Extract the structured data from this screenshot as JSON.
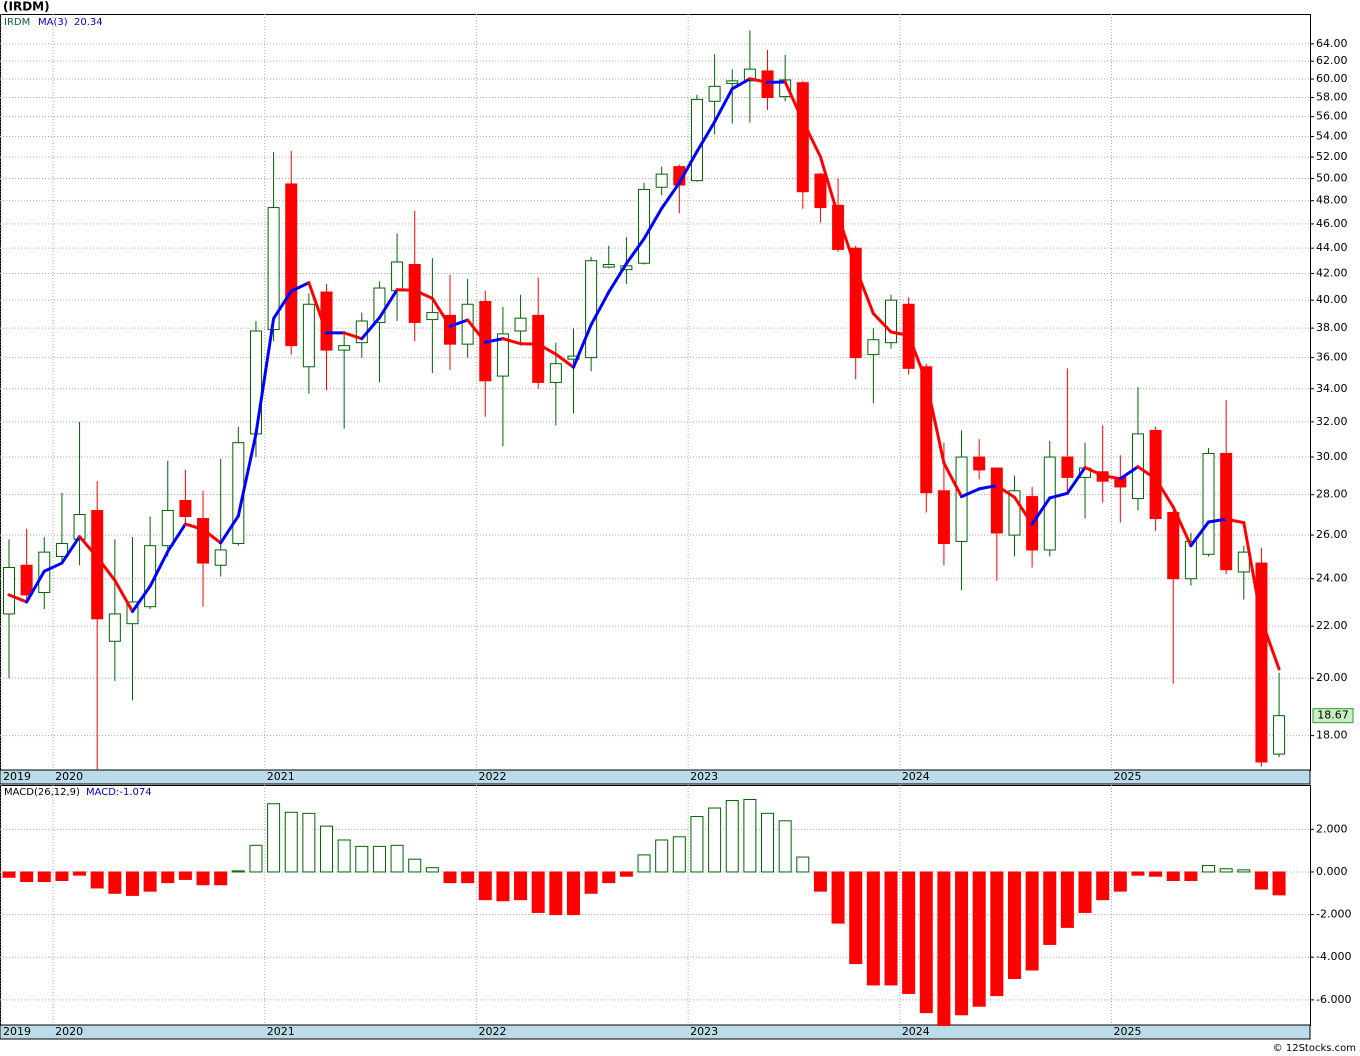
{
  "chart_data": [
    {
      "type": "candlestick",
      "title": "(IRDM)",
      "symbol": "IRDM",
      "log_scale": true,
      "grid": true,
      "categories": [
        "2019",
        null,
        null,
        "2020",
        null,
        null,
        null,
        null,
        null,
        null,
        null,
        null,
        null,
        null,
        null,
        "2021",
        null,
        null,
        null,
        null,
        null,
        null,
        null,
        null,
        null,
        null,
        null,
        "2022",
        null,
        null,
        null,
        null,
        null,
        null,
        null,
        null,
        null,
        null,
        null,
        "2023",
        null,
        null,
        null,
        null,
        null,
        null,
        null,
        null,
        null,
        null,
        null,
        "2024",
        null,
        null,
        null,
        null,
        null,
        null,
        null,
        null,
        null,
        null,
        null,
        "2025",
        null,
        null,
        null,
        null,
        null,
        null,
        null,
        null,
        null
      ],
      "open": [
        22.5,
        24.6,
        23.4,
        25.0,
        25.8,
        27.2,
        21.4,
        22.1,
        22.8,
        25.5,
        27.7,
        26.8,
        24.6,
        25.6,
        31.3,
        37.9,
        49.5,
        35.4,
        40.6,
        36.5,
        37.0,
        38.4,
        40.7,
        42.7,
        38.6,
        38.9,
        36.9,
        39.9,
        34.8,
        37.8,
        38.9,
        34.4,
        35.9,
        36.0,
        42.5,
        42.3,
        42.8,
        49.2,
        51.1,
        49.8,
        57.6,
        59.5,
        59.8,
        60.9,
        58.1,
        59.6,
        50.4,
        47.6,
        44.0,
        36.2,
        37.0,
        39.7,
        35.4,
        28.2,
        25.7,
        30.0,
        29.4,
        26.0,
        27.9,
        25.3,
        30.0,
        28.9,
        29.2,
        28.9,
        27.8,
        31.5,
        27.1,
        24.0,
        25.1,
        30.2,
        24.3,
        24.7,
        17.4
      ],
      "high": [
        25.8,
        26.3,
        25.9,
        28.1,
        32.0,
        28.7,
        25.8,
        25.9,
        26.9,
        29.8,
        29.3,
        28.2,
        29.9,
        31.7,
        38.5,
        52.5,
        52.6,
        40.5,
        41.2,
        37.8,
        39.1,
        41.4,
        45.2,
        47.1,
        43.2,
        41.9,
        41.6,
        40.7,
        39.5,
        40.4,
        41.7,
        37.0,
        38.0,
        43.3,
        44.2,
        44.9,
        49.6,
        51.1,
        51.3,
        58.3,
        62.8,
        61.1,
        65.6,
        63.3,
        62.7,
        59.8,
        50.5,
        50.0,
        44.2,
        38.0,
        40.4,
        40.2,
        35.6,
        30.8,
        31.5,
        31.0,
        29.4,
        29.0,
        28.4,
        30.9,
        35.3,
        30.8,
        31.8,
        30.1,
        34.1,
        31.7,
        27.2,
        26.1,
        30.5,
        33.3,
        25.5,
        25.4,
        20.2
      ],
      "low": [
        20.0,
        23.0,
        22.7,
        24.8,
        24.6,
        16.9,
        19.9,
        19.2,
        22.7,
        25.0,
        26.5,
        22.8,
        24.1,
        25.5,
        30.0,
        37.1,
        36.2,
        33.7,
        33.9,
        31.6,
        36.0,
        34.4,
        38.5,
        37.1,
        35.0,
        35.2,
        36.0,
        32.3,
        30.6,
        36.8,
        34.0,
        31.8,
        32.5,
        35.1,
        42.4,
        41.2,
        42.7,
        48.5,
        46.9,
        49.7,
        54.2,
        55.3,
        55.4,
        56.7,
        57.6,
        47.3,
        46.1,
        43.7,
        34.6,
        33.1,
        36.6,
        34.9,
        27.1,
        24.6,
        23.5,
        28.8,
        23.9,
        25.0,
        24.5,
        25.0,
        28.0,
        26.8,
        27.6,
        26.6,
        27.2,
        26.2,
        19.8,
        23.7,
        25.0,
        24.2,
        23.1,
        17.0,
        17.3
      ],
      "close": [
        24.5,
        23.3,
        25.2,
        25.6,
        27.0,
        22.3,
        22.5,
        23.0,
        25.5,
        27.2,
        26.9,
        24.7,
        25.3,
        30.8,
        37.8,
        47.4,
        36.8,
        39.7,
        36.5,
        36.8,
        38.5,
        40.9,
        42.9,
        38.4,
        39.1,
        36.9,
        39.7,
        34.5,
        37.6,
        38.7,
        34.4,
        35.6,
        36.1,
        43.0,
        42.7,
        42.6,
        49.0,
        50.4,
        49.4,
        57.8,
        59.2,
        59.8,
        61.1,
        58.0,
        59.9,
        48.8,
        47.4,
        43.9,
        36.0,
        37.2,
        40.0,
        35.3,
        28.1,
        25.6,
        30.0,
        29.3,
        26.1,
        28.2,
        25.3,
        30.0,
        28.9,
        29.4,
        28.7,
        28.4,
        31.3,
        26.8,
        24.0,
        25.7,
        30.2,
        24.4,
        25.2,
        17.15,
        18.67
      ],
      "up_color": "#006400",
      "down_color": "#ff0000",
      "last_price": 18.67,
      "last_price_color": "#c8f0c0",
      "ma": {
        "name": "MA(3)",
        "last": 20.34,
        "up_color": "#0000ff",
        "down_color": "#ff0000",
        "values": [
          23.3,
          23.0,
          24.33,
          24.7,
          25.93,
          24.97,
          23.93,
          22.6,
          23.67,
          25.23,
          26.53,
          26.27,
          25.63,
          26.93,
          31.3,
          38.67,
          40.67,
          41.3,
          37.67,
          37.67,
          37.27,
          38.73,
          40.77,
          40.73,
          40.13,
          38.13,
          38.57,
          37.03,
          37.27,
          36.93,
          36.9,
          36.23,
          35.37,
          38.23,
          40.6,
          42.77,
          44.77,
          47.33,
          49.6,
          52.53,
          55.47,
          58.93,
          60.03,
          59.63,
          59.67,
          55.57,
          52.03,
          46.7,
          42.43,
          39.03,
          37.73,
          37.5,
          34.47,
          29.67,
          27.9,
          28.3,
          28.47,
          27.87,
          26.53,
          27.83,
          28.07,
          29.43,
          29.0,
          28.83,
          29.47,
          28.83,
          27.37,
          25.5,
          26.63,
          26.77,
          26.6,
          22.25,
          20.34
        ]
      },
      "ylim": [
        16.9,
        67.6
      ],
      "yticks": [
        {
          "value": 18,
          "label": "18.00"
        },
        {
          "value": 20,
          "label": "20.00"
        },
        {
          "value": 22,
          "label": "22.00"
        },
        {
          "value": 24,
          "label": "24.00"
        },
        {
          "value": 26,
          "label": "26.00"
        },
        {
          "value": 28,
          "label": "28.00"
        },
        {
          "value": 30,
          "label": "30.00"
        },
        {
          "value": 32,
          "label": "32.00"
        },
        {
          "value": 34,
          "label": "34.00"
        },
        {
          "value": 36,
          "label": "36.00"
        },
        {
          "value": 38,
          "label": "38.00"
        },
        {
          "value": 40,
          "label": "40.00"
        },
        {
          "value": 42,
          "label": "42.00"
        },
        {
          "value": 44,
          "label": "44.00"
        },
        {
          "value": 46,
          "label": "46.00"
        },
        {
          "value": 48,
          "label": "48.00"
        },
        {
          "value": 50,
          "label": "50.00"
        },
        {
          "value": 52,
          "label": "52.00"
        },
        {
          "value": 54,
          "label": "54.00"
        },
        {
          "value": 56,
          "label": "56.00"
        },
        {
          "value": 58,
          "label": "58.00"
        },
        {
          "value": 60,
          "label": "60.00"
        },
        {
          "value": 62,
          "label": "62.00"
        },
        {
          "value": 64,
          "label": "64.00"
        }
      ]
    },
    {
      "type": "bar",
      "title": "MACD(26,12,9)",
      "legend": "MACD:-1.074",
      "grid": true,
      "categories": [
        "2019",
        null,
        null,
        "2020",
        null,
        null,
        null,
        null,
        null,
        null,
        null,
        null,
        null,
        null,
        null,
        "2021",
        null,
        null,
        null,
        null,
        null,
        null,
        null,
        null,
        null,
        null,
        null,
        "2022",
        null,
        null,
        null,
        null,
        null,
        null,
        null,
        null,
        null,
        null,
        null,
        "2023",
        null,
        null,
        null,
        null,
        null,
        null,
        null,
        null,
        null,
        null,
        null,
        "2024",
        null,
        null,
        null,
        null,
        null,
        null,
        null,
        null,
        null,
        null,
        null,
        "2025",
        null,
        null,
        null,
        null,
        null,
        null,
        null,
        null,
        null
      ],
      "values": [
        -0.25,
        -0.45,
        -0.45,
        -0.4,
        -0.15,
        -0.75,
        -1.0,
        -1.1,
        -0.9,
        -0.5,
        -0.35,
        -0.6,
        -0.6,
        0.05,
        1.25,
        3.2,
        2.8,
        2.75,
        2.15,
        1.5,
        1.2,
        1.2,
        1.25,
        0.6,
        0.2,
        -0.5,
        -0.5,
        -1.3,
        -1.35,
        -1.3,
        -1.9,
        -2.0,
        -2.0,
        -1.0,
        -0.5,
        -0.2,
        0.8,
        1.5,
        1.65,
        2.6,
        3.0,
        3.35,
        3.4,
        2.75,
        2.4,
        0.7,
        -0.9,
        -2.4,
        -4.3,
        -5.3,
        -5.3,
        -5.7,
        -6.6,
        -7.2,
        -6.7,
        -6.3,
        -5.8,
        -5.0,
        -4.6,
        -3.4,
        -2.6,
        -1.9,
        -1.3,
        -0.9,
        -0.15,
        -0.2,
        -0.4,
        -0.4,
        0.3,
        0.15,
        0.1,
        -0.8,
        -1.074
      ],
      "up_color": "#006400",
      "down_color": "#ff0000",
      "ylim": [
        -7.18,
        4.08
      ],
      "yticks": [
        {
          "value": -6,
          "label": "-6.000"
        },
        {
          "value": -4,
          "label": "-4.000"
        },
        {
          "value": -2,
          "label": "-2.000"
        },
        {
          "value": 0,
          "label": "0.000"
        },
        {
          "value": 2,
          "label": "2.000"
        }
      ]
    }
  ],
  "footer": "© 12Stocks.com"
}
